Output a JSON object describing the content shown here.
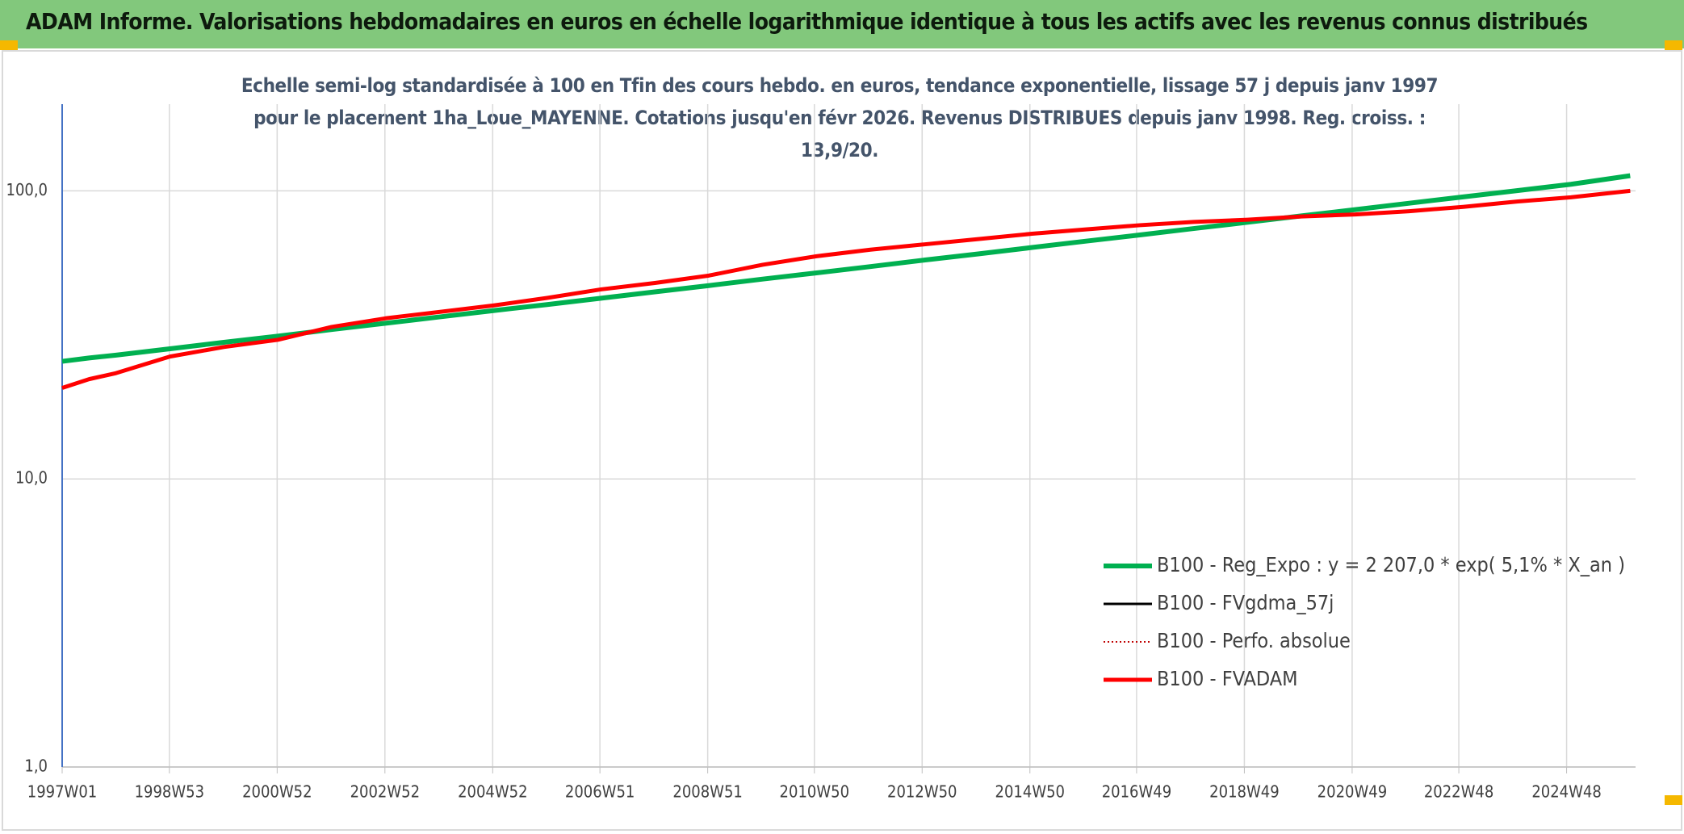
{
  "header": {
    "title": "ADAM Informe. Valorisations hebdomadaires en euros en échelle logarithmique identique à tous les actifs avec les revenus connus distribués"
  },
  "chart_data": {
    "type": "line",
    "title": "Echelle semi-log standardisée à 100 en Tfin des cours hebdo. en euros, tendance exponentielle, lissage 57 j depuis janv 1997 pour le placement 1ha_Loue_MAYENNE. Cotations jusqu'en févr 2026. Revenus DISTRIBUES depuis janv 1998. Reg. croiss. : 13,9/20.",
    "log_scale": true,
    "grid": true,
    "legend": "lower right",
    "xlim": [
      1997,
      2026.2
    ],
    "xticks": [
      {
        "value": 1997,
        "label": "1997W01"
      },
      {
        "value": 1998.99,
        "label": "1998W53"
      },
      {
        "value": 2000.99,
        "label": "2000W52"
      },
      {
        "value": 2002.99,
        "label": "2002W52"
      },
      {
        "value": 2004.99,
        "label": "2004W52"
      },
      {
        "value": 2006.98,
        "label": "2006W51"
      },
      {
        "value": 2008.98,
        "label": "2008W51"
      },
      {
        "value": 2010.96,
        "label": "2010W50"
      },
      {
        "value": 2012.96,
        "label": "2012W50"
      },
      {
        "value": 2014.96,
        "label": "2014W50"
      },
      {
        "value": 2016.94,
        "label": "2016W49"
      },
      {
        "value": 2018.94,
        "label": "2018W49"
      },
      {
        "value": 2020.94,
        "label": "2020W49"
      },
      {
        "value": 2022.92,
        "label": "2022W48"
      },
      {
        "value": 2024.92,
        "label": "2024W48"
      }
    ],
    "ylim": [
      1,
      200
    ],
    "yticks": [
      {
        "value": 1,
        "label": "1,0"
      },
      {
        "value": 10,
        "label": "10,0"
      },
      {
        "value": 100,
        "label": "100,0"
      }
    ],
    "x": [
      1997,
      1997.5,
      1998,
      1999,
      2000,
      2001,
      2002,
      2003,
      2004,
      2005,
      2006,
      2007,
      2008,
      2009,
      2010,
      2011,
      2012,
      2013,
      2014,
      2015,
      2016,
      2017,
      2018,
      2019,
      2020,
      2021,
      2022,
      2023,
      2024,
      2025,
      2026.1
    ],
    "series": [
      {
        "name": "B100 - Reg_Expo : y = 2 207,0 * exp( 5,1% *  X_an )",
        "color": "#00b050",
        "line_width": 6,
        "values": [
          25.6,
          26.3,
          26.9,
          28.3,
          29.8,
          31.3,
          33.0,
          34.7,
          36.5,
          38.4,
          40.3,
          42.4,
          44.6,
          46.9,
          49.4,
          51.9,
          54.6,
          57.5,
          60.4,
          63.6,
          66.9,
          70.3,
          74.0,
          77.8,
          81.9,
          86.1,
          90.6,
          95.3,
          100.2,
          105.4,
          112.9
        ]
      },
      {
        "name": "B100 - FVgdma_57j",
        "color": "#000000",
        "line_width": 3,
        "values": [
          20.7,
          22.2,
          23.3,
          26.6,
          28.7,
          30.4,
          33.7,
          36.1,
          38.0,
          40.0,
          42.5,
          45.5,
          47.9,
          50.8,
          55.4,
          59.3,
          62.5,
          65.2,
          68.0,
          71.0,
          73.5,
          76.0,
          78.0,
          79.4,
          81.5,
          82.8,
          85.0,
          88.0,
          91.8,
          95.0,
          100
        ]
      },
      {
        "name": "B100 - Perfo. absolue",
        "color": "#c00000",
        "line_width": 2,
        "dash": "dotted",
        "values": [
          20.7,
          22.2,
          23.3,
          26.6,
          28.7,
          30.4,
          33.7,
          36.1,
          38.0,
          40.0,
          42.5,
          45.5,
          47.9,
          50.8,
          55.4,
          59.3,
          62.5,
          65.2,
          68.0,
          71.0,
          73.5,
          76.0,
          78.0,
          79.4,
          81.5,
          82.8,
          85.0,
          88.0,
          91.8,
          95.0,
          100
        ]
      },
      {
        "name": "B100 - FVADAM",
        "color": "#ff0000",
        "line_width": 5,
        "values": [
          20.7,
          22.2,
          23.3,
          26.6,
          28.7,
          30.4,
          33.7,
          36.1,
          38.0,
          40.0,
          42.5,
          45.5,
          47.9,
          50.8,
          55.4,
          59.3,
          62.5,
          65.2,
          68.0,
          71.0,
          73.5,
          76.0,
          78.0,
          79.4,
          81.5,
          82.8,
          85.0,
          88.0,
          91.8,
          95.0,
          100
        ]
      }
    ]
  }
}
